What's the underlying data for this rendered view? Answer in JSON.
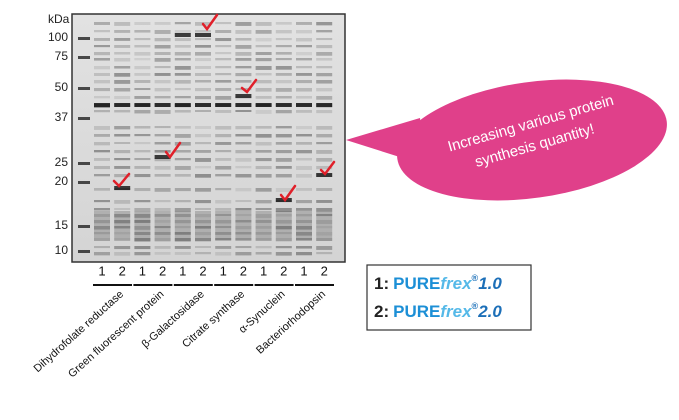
{
  "gel": {
    "unit": "kDa",
    "markers": [
      "100",
      "75",
      "50",
      "37",
      "25",
      "20",
      "15",
      "10"
    ]
  },
  "samples": [
    {
      "name": "Dihydrofolate reductase",
      "lanes": [
        "1",
        "2"
      ]
    },
    {
      "name": "Green fluorescent protein",
      "lanes": [
        "1",
        "2"
      ]
    },
    {
      "name": "β-Galactosidase",
      "lanes": [
        "1",
        "2"
      ]
    },
    {
      "name": "Citrate synthase",
      "lanes": [
        "1",
        "2"
      ]
    },
    {
      "name": "α-Synuclein",
      "lanes": [
        "1",
        "2"
      ]
    },
    {
      "name": "Bacteriorhodopsin",
      "lanes": [
        "1",
        "2"
      ]
    }
  ],
  "callout": {
    "lines": [
      "Increasing various protein",
      "synthesis quantity!"
    ]
  },
  "legend": [
    {
      "number": "1:",
      "brand": "PURE",
      "italic": "frex",
      "mark": "®",
      "version": "1.0"
    },
    {
      "number": "2:",
      "brand": "PURE",
      "italic": "frex",
      "mark": "®",
      "version": "2.0"
    }
  ]
}
